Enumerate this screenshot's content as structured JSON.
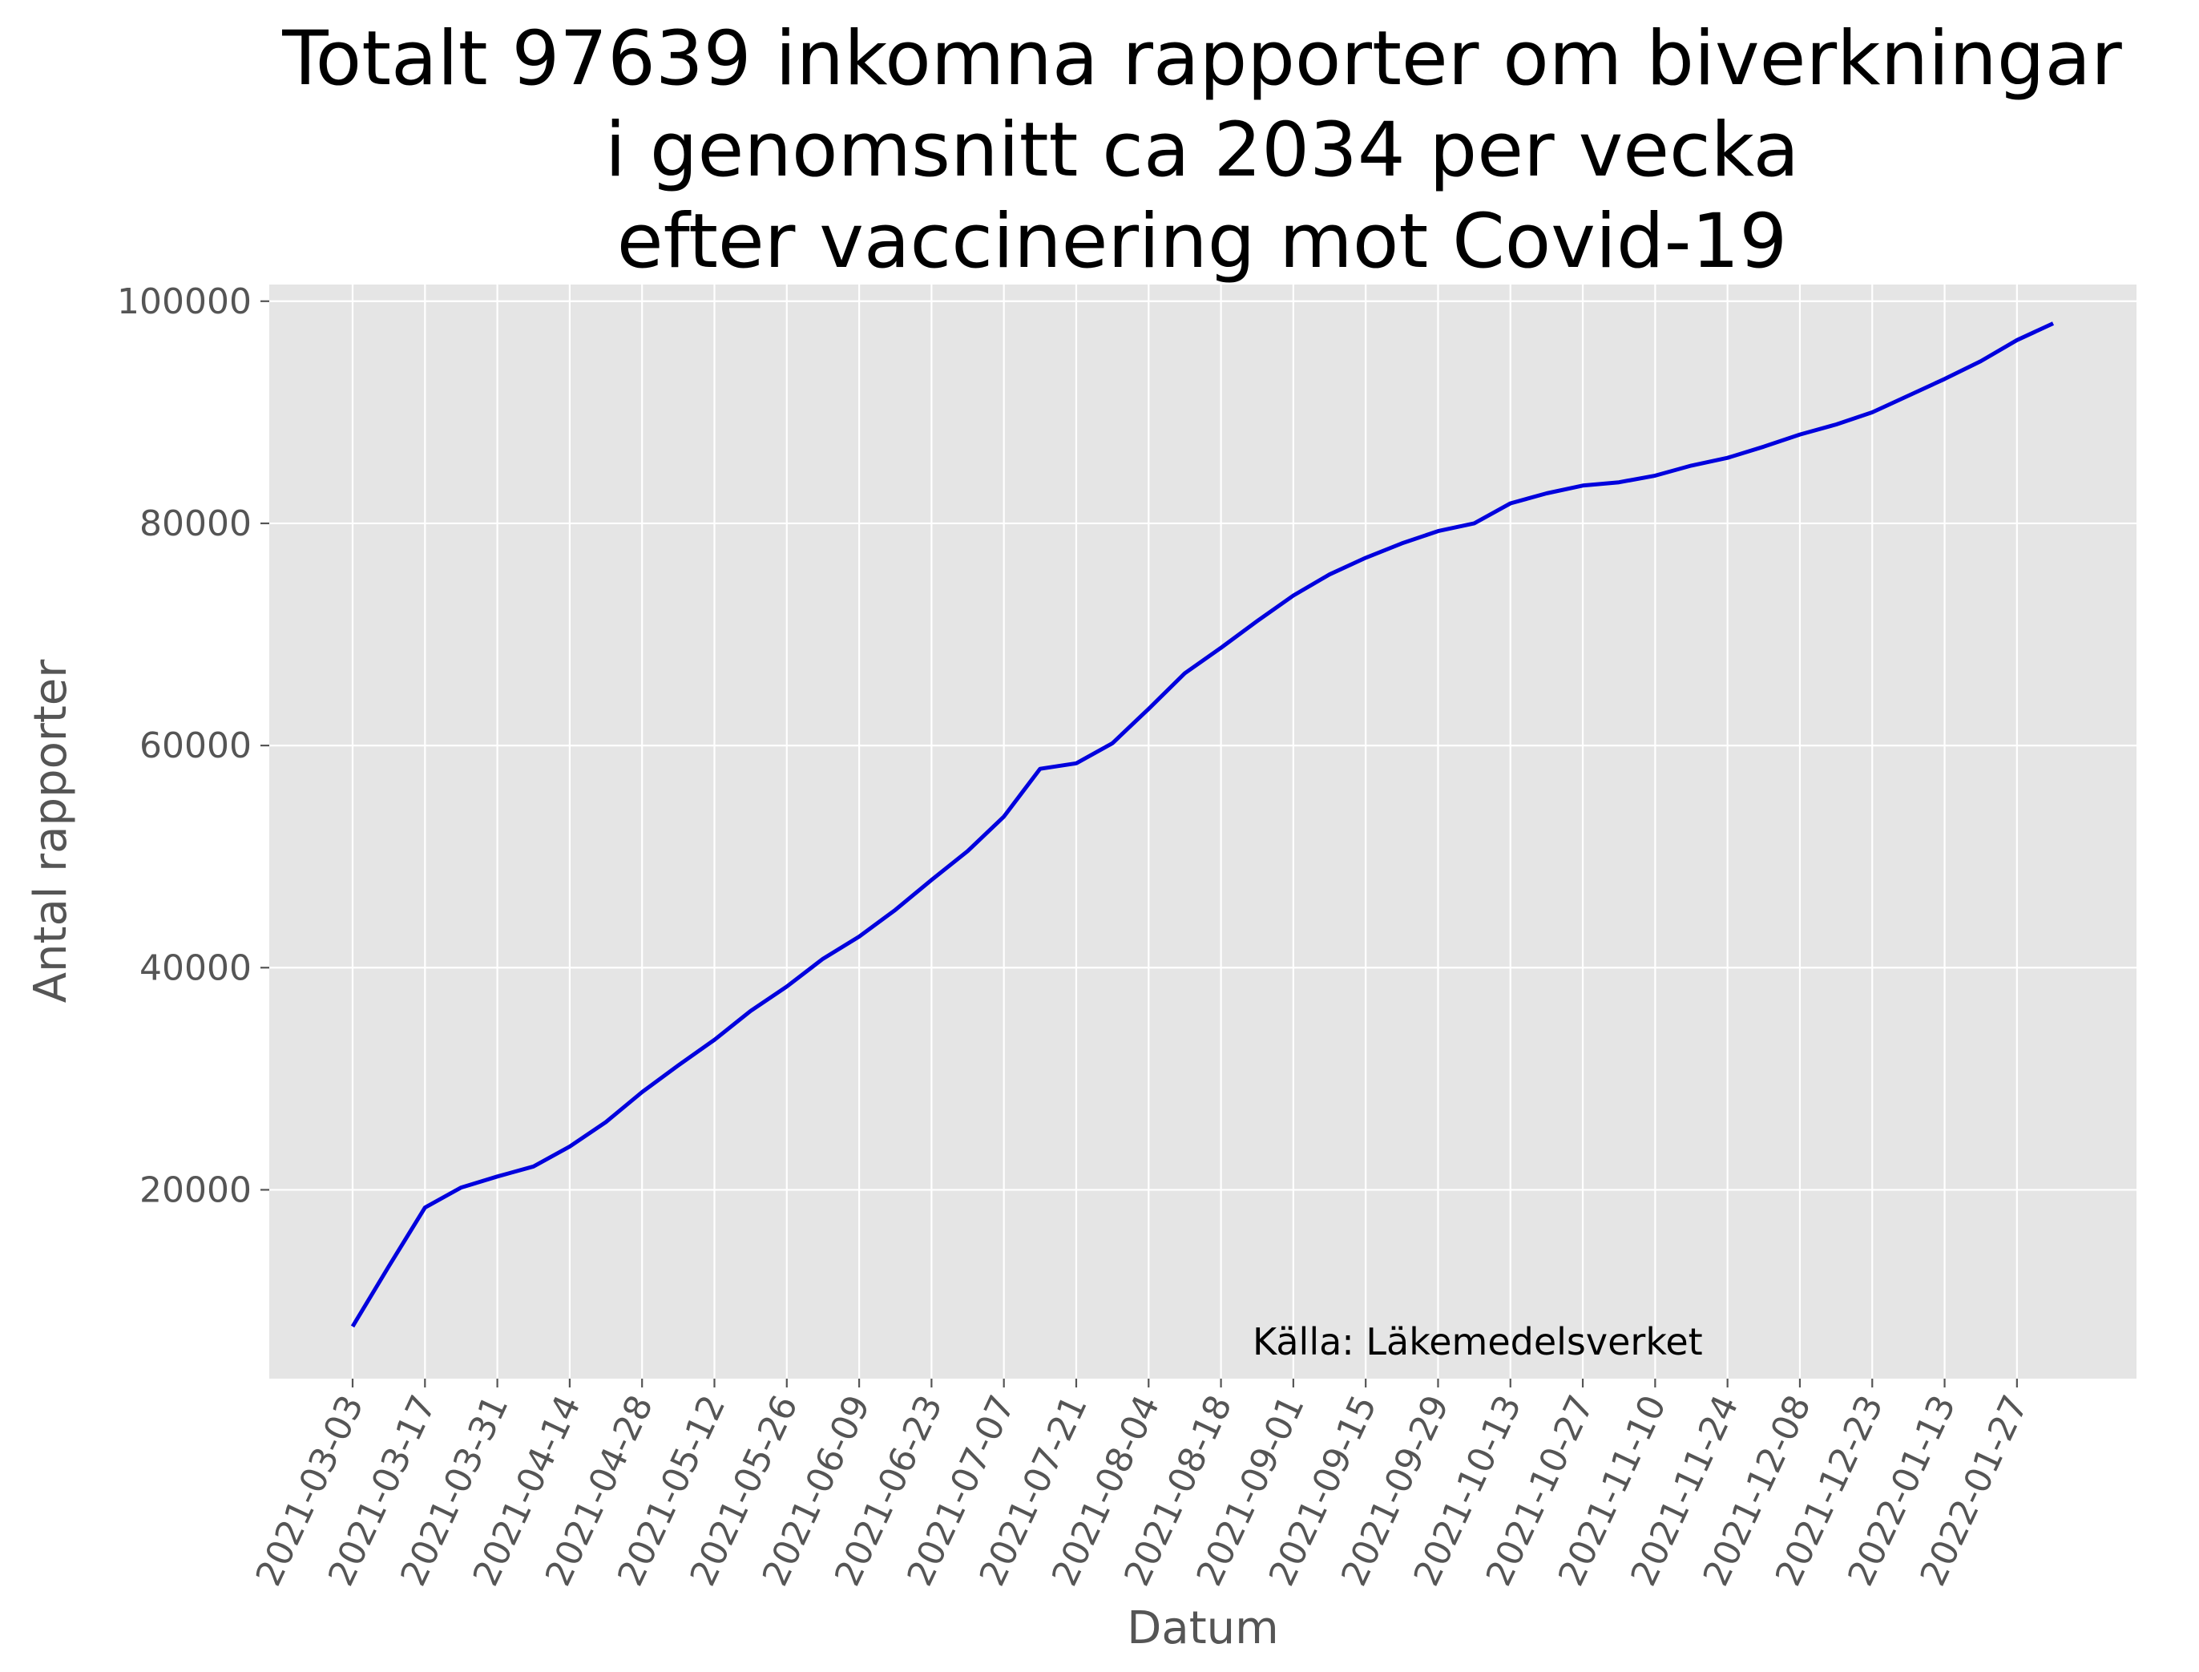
{
  "chart_data": {
    "type": "line",
    "title_lines": [
      "Totalt 97639 inkomna rapporter om biverkningar",
      "i genomsnitt ca 2034 per vecka",
      "efter vaccinering mot Covid-19"
    ],
    "xlabel": "Datum",
    "ylabel": "Antal rapporter",
    "annotation": "Källa: Läkemedelsverket",
    "grid": true,
    "ylim": [
      3000,
      101500
    ],
    "yticks": [
      20000,
      40000,
      60000,
      80000,
      100000
    ],
    "xticks": [
      "2021-03-03",
      "2021-03-17",
      "2021-03-31",
      "2021-04-14",
      "2021-04-28",
      "2021-05-12",
      "2021-05-26",
      "2021-06-09",
      "2021-06-23",
      "2021-07-07",
      "2021-07-21",
      "2021-08-04",
      "2021-08-18",
      "2021-09-01",
      "2021-09-15",
      "2021-09-29",
      "2021-10-13",
      "2021-10-27",
      "2021-11-10",
      "2021-11-24",
      "2021-12-08",
      "2021-12-23",
      "2022-01-13",
      "2022-01-27"
    ],
    "series": [
      {
        "color": "#0000dd",
        "values": [
          7700,
          13100,
          18400,
          20200,
          21200,
          22100,
          23900,
          26100,
          28800,
          31200,
          33500,
          36100,
          38300,
          40800,
          42800,
          45200,
          47900,
          50500,
          53600,
          57900,
          58400,
          60200,
          63300,
          66500,
          68800,
          71200,
          73500,
          75400,
          76900,
          78200,
          79300,
          80000,
          81800,
          82700,
          83400,
          83700,
          84300,
          85200,
          85900,
          86900,
          88000,
          88900,
          90000,
          91500,
          93000,
          94600,
          96500,
          98000
        ]
      }
    ]
  }
}
